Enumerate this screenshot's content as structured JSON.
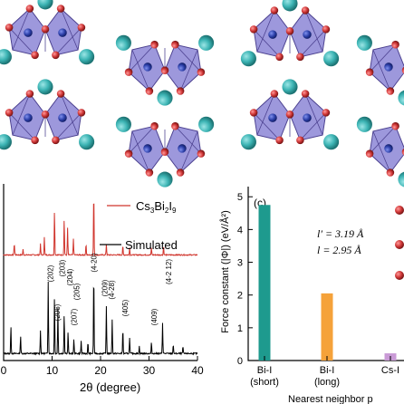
{
  "top_panel": {
    "colors": {
      "octahedron_fill": "#8c86d6",
      "octahedron_edge": "#4a3f8e",
      "bi_atom": "#2c3fa8",
      "i_atom": "#d23a3a",
      "cs_atom": "#3cb4b4"
    }
  },
  "xrd_panel": {
    "legend_label": "Cs",
    "legend_sub1": "3",
    "legend_mid": "Bi",
    "legend_sub2": "2",
    "legend_mid2": "I",
    "legend_sub3": "9",
    "simulated_label": "Simulated",
    "xlabel": "2θ (degree)",
    "xticks": [
      "0",
      "10",
      "20",
      "30",
      "40"
    ],
    "peak_labels": [
      "(202)",
      "(203)",
      "(204)",
      "(205)",
      "(206)",
      "(207)",
      "(4-20)",
      "(209)",
      "(4-28)",
      "(405)",
      "(409)",
      "(4-2 12)"
    ],
    "colors": {
      "experimental": "#d0342c",
      "simulated": "#000000"
    }
  },
  "force_panel": {
    "panel_label": "(c)",
    "ylabel": "Force constant (|Φ|) (eV/Å²)",
    "yticks": [
      "0",
      "1",
      "2",
      "3",
      "4",
      "5"
    ],
    "xlabel": "Nearest neighbor p",
    "cat_lines": [
      [
        "Bi-I",
        "(short)"
      ],
      [
        "Bi-I",
        "(long)"
      ],
      [
        "Cs-I",
        ""
      ]
    ],
    "annot_l_prime": "l′ = 3.19 Å",
    "annot_l": "l = 2.95 Å",
    "colors": {
      "bar_short": "#1e9a8e",
      "bar_long": "#f5a23a",
      "bar_cs": "#c99ad6",
      "dot": "#d23a3a"
    }
  },
  "chart_data": {
    "type": "bar",
    "categories": [
      "Bi-I (short)",
      "Bi-I (long)",
      "Cs-I"
    ],
    "values": [
      4.75,
      2.05,
      0.22
    ],
    "ylim": [
      0,
      5.2
    ],
    "xlabel": "Nearest neighbor p",
    "ylabel": "Force constant (|Φ|) (eV/Å²)"
  }
}
